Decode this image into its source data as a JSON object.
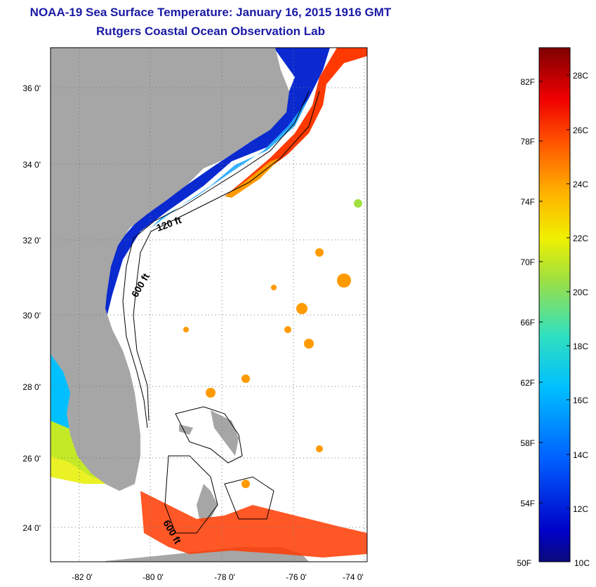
{
  "header": {
    "title": "NOAA-19 Sea Surface Temperature:  January 16, 2015 1916 GMT",
    "subtitle": "Rutgers Coastal Ocean Observation Lab"
  },
  "map": {
    "lat_labels": [
      "36 0'",
      "34 0'",
      "32 0'",
      "30 0'",
      "28 0'",
      "26 0'",
      "24 0'"
    ],
    "lon_labels": [
      "-82 0'",
      "-80 0'",
      "-78 0'",
      "-76 0'",
      "-74 0'"
    ],
    "isobath_labels": [
      "120 ft",
      "600 ft",
      "600 ft"
    ],
    "colors": {
      "land": "#a6a6a6",
      "frame": "#000000",
      "title": "#1a1aa6"
    }
  },
  "colorbar": {
    "fahrenheit_labels": [
      "82F",
      "78F",
      "74F",
      "70F",
      "66F",
      "62F",
      "58F",
      "54F",
      "50F"
    ],
    "celsius_labels": [
      "28C",
      "26C",
      "24C",
      "22C",
      "20C",
      "18C",
      "16C",
      "14C",
      "12C",
      "10C"
    ],
    "range_c": [
      10,
      29
    ]
  }
}
